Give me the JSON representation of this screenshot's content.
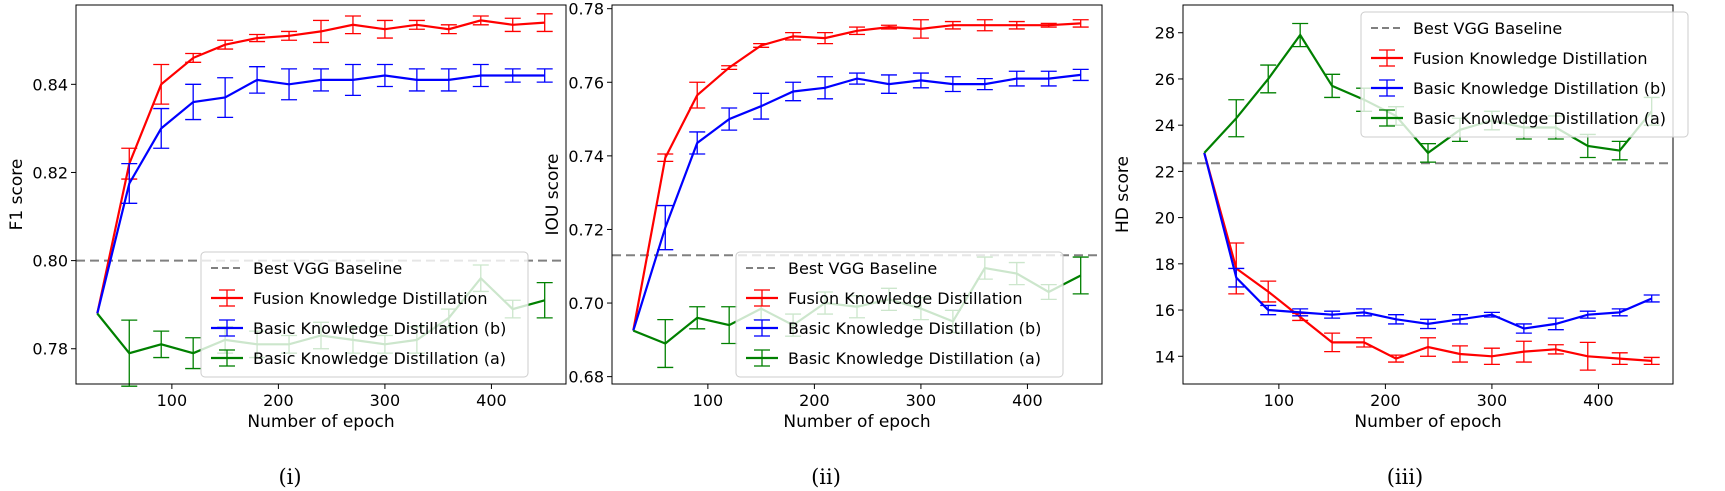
{
  "chart_data": [
    {
      "type": "line",
      "caption": "(i)",
      "xlabel": "Number of epoch",
      "ylabel": "F1 score",
      "xlim": [
        10,
        470
      ],
      "ylim": [
        0.772,
        0.858
      ],
      "xticks": [
        100,
        200,
        300,
        400
      ],
      "yticks": [
        0.78,
        0.8,
        0.82,
        0.84
      ],
      "ytick_labels": [
        "0.78",
        "0.80",
        "0.82",
        "0.84"
      ],
      "grid": false,
      "legend_position": "lower-right",
      "baseline": {
        "name": "Best VGG Baseline",
        "value": 0.8,
        "color": "#808080",
        "style": "dashed"
      },
      "x": [
        30,
        60,
        90,
        120,
        150,
        180,
        210,
        240,
        270,
        300,
        330,
        360,
        390,
        420,
        450
      ],
      "series": [
        {
          "name": "Fusion Knowledge Distillation",
          "color": "#ff0000",
          "values": [
            0.788,
            0.822,
            0.84,
            0.846,
            0.849,
            0.8505,
            0.851,
            0.852,
            0.8535,
            0.8525,
            0.8535,
            0.8525,
            0.8545,
            0.8535,
            0.854
          ],
          "err": [
            0.0,
            0.0035,
            0.0045,
            0.001,
            0.001,
            0.0008,
            0.001,
            0.0025,
            0.002,
            0.002,
            0.001,
            0.001,
            0.001,
            0.0015,
            0.002
          ]
        },
        {
          "name": "Basic Knowledge Distillation (b)",
          "color": "#0000ff",
          "values": [
            0.788,
            0.8175,
            0.83,
            0.836,
            0.837,
            0.841,
            0.84,
            0.841,
            0.841,
            0.842,
            0.841,
            0.841,
            0.842,
            0.842,
            0.842
          ],
          "err": [
            0.0,
            0.0045,
            0.0045,
            0.004,
            0.0045,
            0.003,
            0.0035,
            0.0025,
            0.0035,
            0.0025,
            0.0025,
            0.0025,
            0.0025,
            0.0015,
            0.0015
          ]
        },
        {
          "name": "Basic Knowledge Distillation (a)",
          "color": "#008000",
          "values": [
            0.788,
            0.779,
            0.781,
            0.779,
            0.782,
            0.781,
            0.781,
            0.783,
            0.782,
            0.781,
            0.782,
            0.787,
            0.796,
            0.789,
            0.791
          ],
          "err": [
            0.0,
            0.0075,
            0.003,
            0.0035,
            0.003,
            0.003,
            0.002,
            0.003,
            0.003,
            0.002,
            0.003,
            0.002,
            0.003,
            0.002,
            0.004
          ]
        }
      ]
    },
    {
      "type": "line",
      "caption": "(ii)",
      "xlabel": "Number of epoch",
      "ylabel": "IOU score",
      "xlim": [
        10,
        470
      ],
      "ylim": [
        0.678,
        0.781
      ],
      "xticks": [
        100,
        200,
        300,
        400
      ],
      "yticks": [
        0.68,
        0.7,
        0.72,
        0.74,
        0.76,
        0.78
      ],
      "ytick_labels": [
        "0.68",
        "0.70",
        "0.72",
        "0.74",
        "0.76",
        "0.78"
      ],
      "grid": false,
      "legend_position": "lower-right",
      "baseline": {
        "name": "Best VGG Baseline",
        "value": 0.713,
        "color": "#808080",
        "style": "dashed"
      },
      "x": [
        30,
        60,
        90,
        120,
        150,
        180,
        210,
        240,
        270,
        300,
        330,
        360,
        390,
        420,
        450
      ],
      "series": [
        {
          "name": "Fusion Knowledge Distillation",
          "color": "#ff0000",
          "values": [
            0.6925,
            0.7395,
            0.7565,
            0.764,
            0.77,
            0.7725,
            0.772,
            0.774,
            0.775,
            0.7745,
            0.7755,
            0.7755,
            0.7755,
            0.7755,
            0.776
          ],
          "err": [
            0.0,
            0.001,
            0.0035,
            0.0005,
            0.0005,
            0.001,
            0.0015,
            0.001,
            0.0005,
            0.0025,
            0.001,
            0.0015,
            0.001,
            0.0005,
            0.001
          ]
        },
        {
          "name": "Basic Knowledge Distillation (b)",
          "color": "#0000ff",
          "values": [
            0.6925,
            0.7205,
            0.7435,
            0.75,
            0.7535,
            0.7575,
            0.7585,
            0.761,
            0.7595,
            0.7605,
            0.7595,
            0.7595,
            0.761,
            0.761,
            0.762
          ],
          "err": [
            0.0,
            0.006,
            0.003,
            0.003,
            0.0035,
            0.0025,
            0.003,
            0.0015,
            0.0025,
            0.002,
            0.002,
            0.0015,
            0.002,
            0.002,
            0.0015
          ]
        },
        {
          "name": "Basic Knowledge Distillation (a)",
          "color": "#008000",
          "values": [
            0.6925,
            0.689,
            0.696,
            0.694,
            0.6985,
            0.694,
            0.7,
            0.699,
            0.701,
            0.6985,
            0.695,
            0.7095,
            0.708,
            0.703,
            0.7075
          ],
          "err": [
            0.0,
            0.0065,
            0.003,
            0.005,
            0.003,
            0.003,
            0.003,
            0.003,
            0.003,
            0.003,
            0.003,
            0.003,
            0.003,
            0.002,
            0.005
          ]
        }
      ]
    },
    {
      "type": "line",
      "caption": "(iii)",
      "xlabel": "Number of epoch",
      "ylabel": "HD score",
      "xlim": [
        10,
        470
      ],
      "ylim": [
        12.8,
        29.2
      ],
      "xticks": [
        100,
        200,
        300,
        400
      ],
      "yticks": [
        14,
        16,
        18,
        20,
        22,
        24,
        26,
        28
      ],
      "ytick_labels": [
        "14",
        "16",
        "18",
        "20",
        "22",
        "24",
        "26",
        "28"
      ],
      "grid": false,
      "legend_position": "upper-right",
      "baseline": {
        "name": "Best VGG Baseline",
        "value": 22.35,
        "color": "#808080",
        "style": "dashed"
      },
      "x": [
        30,
        60,
        90,
        120,
        150,
        180,
        210,
        240,
        270,
        300,
        330,
        360,
        390,
        420,
        450
      ],
      "series": [
        {
          "name": "Fusion Knowledge Distillation",
          "color": "#ff0000",
          "values": [
            22.8,
            17.8,
            16.8,
            15.7,
            14.6,
            14.6,
            13.9,
            14.4,
            14.1,
            14.0,
            14.2,
            14.3,
            14.0,
            13.9,
            13.8
          ],
          "err": [
            0.0,
            1.1,
            0.45,
            0.15,
            0.4,
            0.2,
            0.15,
            0.4,
            0.35,
            0.35,
            0.45,
            0.2,
            0.6,
            0.25,
            0.15
          ]
        },
        {
          "name": "Basic Knowledge Distillation (b)",
          "color": "#0000ff",
          "values": [
            22.8,
            17.4,
            16.0,
            15.9,
            15.8,
            15.9,
            15.6,
            15.4,
            15.6,
            15.8,
            15.2,
            15.4,
            15.8,
            15.9,
            16.5
          ],
          "err": [
            0.0,
            0.4,
            0.2,
            0.15,
            0.15,
            0.15,
            0.2,
            0.2,
            0.2,
            0.1,
            0.2,
            0.25,
            0.15,
            0.15,
            0.15
          ]
        },
        {
          "name": "Basic Knowledge Distillation (a)",
          "color": "#008000",
          "values": [
            22.8,
            24.3,
            26.0,
            27.9,
            25.7,
            25.1,
            24.4,
            22.8,
            23.8,
            24.2,
            23.9,
            23.9,
            23.1,
            22.9,
            24.6
          ],
          "err": [
            0.0,
            0.8,
            0.6,
            0.5,
            0.5,
            0.5,
            0.4,
            0.4,
            0.5,
            0.4,
            0.5,
            0.5,
            0.5,
            0.4,
            0.6
          ]
        }
      ]
    }
  ]
}
